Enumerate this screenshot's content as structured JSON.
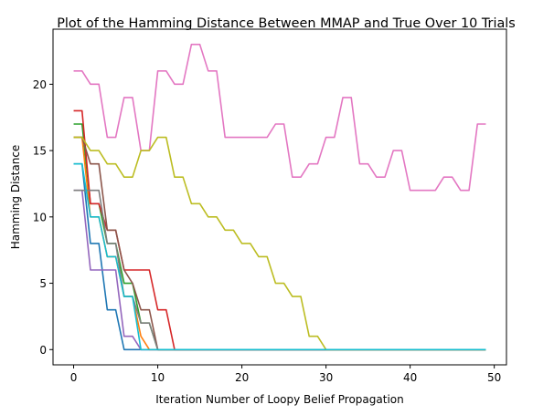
{
  "chart_data": {
    "type": "line",
    "title": "Plot of the Hamming Distance Between MMAP and True Over 10 Trials",
    "xlabel": "Iteration Number of Loopy Belief Propagation",
    "ylabel": "Hamming Distance",
    "xlim": [
      -2.45,
      51.45
    ],
    "ylim": [
      -1.15,
      24.15
    ],
    "xticks": [
      0,
      10,
      20,
      30,
      40,
      50
    ],
    "yticks": [
      0,
      5,
      10,
      15,
      20
    ],
    "grid": false,
    "legend": "none",
    "x": [
      0,
      1,
      2,
      3,
      4,
      5,
      6,
      7,
      8,
      9,
      10,
      11,
      12,
      13,
      14,
      15,
      16,
      17,
      18,
      19,
      20,
      21,
      22,
      23,
      24,
      25,
      26,
      27,
      28,
      29,
      30,
      31,
      32,
      33,
      34,
      35,
      36,
      37,
      38,
      39,
      40,
      41,
      42,
      43,
      44,
      45,
      46,
      47,
      48,
      49
    ],
    "series": [
      {
        "color": "#1f77b4",
        "values": [
          14,
          14,
          8,
          8,
          3,
          3,
          0,
          0,
          0,
          0,
          0,
          0,
          0,
          0,
          0,
          0,
          0,
          0,
          0,
          0,
          0,
          0,
          0,
          0,
          0,
          0,
          0,
          0,
          0,
          0,
          0,
          0,
          0,
          0,
          0,
          0,
          0,
          0,
          0,
          0,
          0,
          0,
          0,
          0,
          0,
          0,
          0,
          0,
          0,
          0
        ]
      },
      {
        "color": "#ff7f0e",
        "values": [
          16,
          16,
          10,
          10,
          7,
          7,
          4,
          4,
          1,
          0,
          0,
          0,
          0,
          0,
          0,
          0,
          0,
          0,
          0,
          0,
          0,
          0,
          0,
          0,
          0,
          0,
          0,
          0,
          0,
          0,
          0,
          0,
          0,
          0,
          0,
          0,
          0,
          0,
          0,
          0,
          0,
          0,
          0,
          0,
          0,
          0,
          0,
          0,
          0,
          0
        ]
      },
      {
        "color": "#2ca02c",
        "values": [
          17,
          17,
          11,
          11,
          8,
          8,
          5,
          5,
          2,
          2,
          0,
          0,
          0,
          0,
          0,
          0,
          0,
          0,
          0,
          0,
          0,
          0,
          0,
          0,
          0,
          0,
          0,
          0,
          0,
          0,
          0,
          0,
          0,
          0,
          0,
          0,
          0,
          0,
          0,
          0,
          0,
          0,
          0,
          0,
          0,
          0,
          0,
          0,
          0,
          0
        ]
      },
      {
        "color": "#d62728",
        "values": [
          18,
          18,
          11,
          11,
          9,
          9,
          6,
          6,
          6,
          6,
          3,
          3,
          0,
          0,
          0,
          0,
          0,
          0,
          0,
          0,
          0,
          0,
          0,
          0,
          0,
          0,
          0,
          0,
          0,
          0,
          0,
          0,
          0,
          0,
          0,
          0,
          0,
          0,
          0,
          0,
          0,
          0,
          0,
          0,
          0,
          0,
          0,
          0,
          0,
          0
        ]
      },
      {
        "color": "#9467bd",
        "values": [
          12,
          12,
          6,
          6,
          6,
          6,
          1,
          1,
          0,
          0,
          0,
          0,
          0,
          0,
          0,
          0,
          0,
          0,
          0,
          0,
          0,
          0,
          0,
          0,
          0,
          0,
          0,
          0,
          0,
          0,
          0,
          0,
          0,
          0,
          0,
          0,
          0,
          0,
          0,
          0,
          0,
          0,
          0,
          0,
          0,
          0,
          0,
          0,
          0,
          0
        ]
      },
      {
        "color": "#8c564b",
        "values": [
          16,
          16,
          14,
          14,
          9,
          9,
          6,
          5,
          3,
          3,
          0,
          0,
          0,
          0,
          0,
          0,
          0,
          0,
          0,
          0,
          0,
          0,
          0,
          0,
          0,
          0,
          0,
          0,
          0,
          0,
          0,
          0,
          0,
          0,
          0,
          0,
          0,
          0,
          0,
          0,
          0,
          0,
          0,
          0,
          0,
          0,
          0,
          0,
          0,
          0
        ]
      },
      {
        "color": "#e377c2",
        "values": [
          21,
          21,
          20,
          20,
          16,
          16,
          19,
          19,
          15,
          15,
          21,
          21,
          20,
          20,
          23,
          23,
          21,
          21,
          16,
          16,
          16,
          16,
          16,
          16,
          17,
          17,
          13,
          13,
          14,
          14,
          16,
          16,
          19,
          19,
          14,
          14,
          13,
          13,
          15,
          15,
          12,
          12,
          12,
          12,
          13,
          13,
          12,
          12,
          17,
          17
        ]
      },
      {
        "color": "#7f7f7f",
        "values": [
          12,
          12,
          12,
          12,
          8,
          8,
          4,
          4,
          2,
          2,
          0,
          0,
          0,
          0,
          0,
          0,
          0,
          0,
          0,
          0,
          0,
          0,
          0,
          0,
          0,
          0,
          0,
          0,
          0,
          0,
          0,
          0,
          0,
          0,
          0,
          0,
          0,
          0,
          0,
          0,
          0,
          0,
          0,
          0,
          0,
          0,
          0,
          0,
          0,
          0
        ]
      },
      {
        "color": "#bcbd22",
        "values": [
          16,
          16,
          15,
          15,
          14,
          14,
          13,
          13,
          15,
          15,
          16,
          16,
          13,
          13,
          11,
          11,
          10,
          10,
          9,
          9,
          8,
          8,
          7,
          7,
          5,
          5,
          4,
          4,
          1,
          1,
          0,
          0,
          0,
          0,
          0,
          0,
          0,
          0,
          0,
          0,
          0,
          0,
          0,
          0,
          0,
          0,
          0,
          0,
          0,
          0
        ]
      },
      {
        "color": "#17becf",
        "values": [
          14,
          14,
          10,
          10,
          7,
          7,
          4,
          4,
          0,
          0,
          0,
          0,
          0,
          0,
          0,
          0,
          0,
          0,
          0,
          0,
          0,
          0,
          0,
          0,
          0,
          0,
          0,
          0,
          0,
          0,
          0,
          0,
          0,
          0,
          0,
          0,
          0,
          0,
          0,
          0,
          0,
          0,
          0,
          0,
          0,
          0,
          0,
          0,
          0,
          0
        ]
      }
    ]
  }
}
